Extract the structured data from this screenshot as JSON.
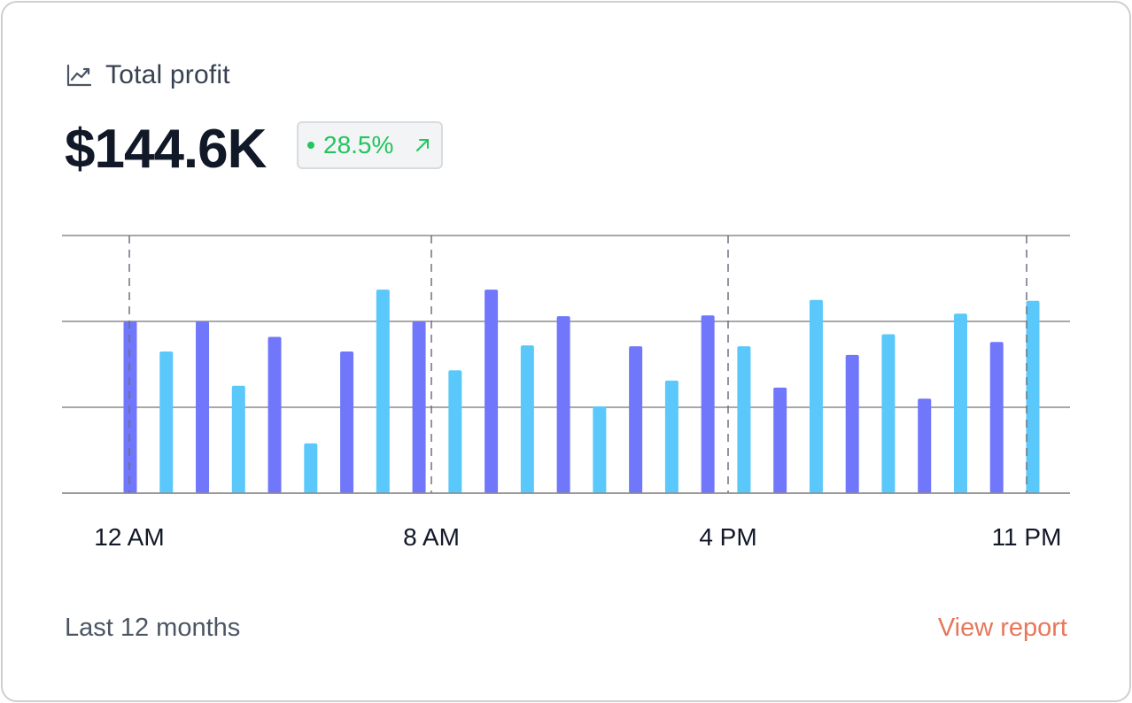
{
  "header": {
    "title": "Total profit",
    "icon": "trend-chart-icon"
  },
  "summary": {
    "value": "$144.6K",
    "change": "28.5%",
    "change_color": "#22c55e",
    "change_icon": "arrow-up-right-icon"
  },
  "footer": {
    "period": "Last 12 months",
    "link": "View report",
    "link_color": "#e8765a"
  },
  "chart_data": {
    "type": "bar",
    "x_tick_labels": [
      "12 AM",
      "8 AM",
      "4 PM",
      "11 PM"
    ],
    "ylim": [
      0,
      3
    ],
    "grid": true,
    "series_colors": [
      "#7177fa",
      "#5ac8fa"
    ],
    "values": [
      2.0,
      1.65,
      2.0,
      1.25,
      1.82,
      0.58,
      1.65,
      2.37,
      2.0,
      1.43,
      2.37,
      1.72,
      2.06,
      1.01,
      1.71,
      1.31,
      2.07,
      1.71,
      1.23,
      2.25,
      1.61,
      1.85,
      1.1,
      2.09,
      1.76,
      2.24
    ]
  }
}
